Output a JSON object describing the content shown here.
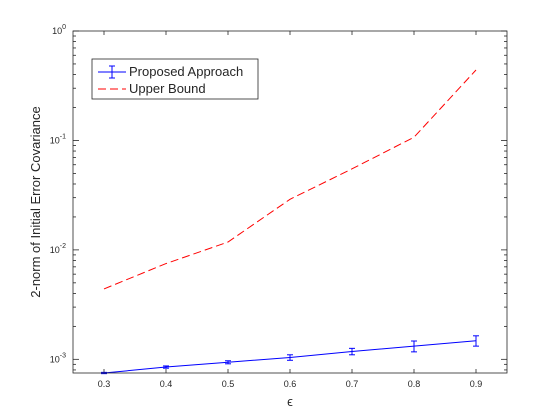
{
  "chart_data": {
    "type": "line",
    "xlabel": "ϵ",
    "ylabel": "2-norm of Initial Error Covariance",
    "xlim": [
      0.25,
      0.95
    ],
    "ylim": [
      0.00075,
      1
    ],
    "yscale": "log",
    "grid": false,
    "legend_position": "top-left",
    "x_ticks": [
      0.3,
      0.4,
      0.5,
      0.6,
      0.7,
      0.8,
      0.9
    ],
    "x_tick_labels": [
      "0.3",
      "0.4",
      "0.5",
      "0.6",
      "0.7",
      "0.8",
      "0.9"
    ],
    "y_ticks": [
      {
        "value": 1,
        "base": "10",
        "exp": "0"
      },
      {
        "value": 0.1,
        "base": "10",
        "exp": "-1"
      },
      {
        "value": 0.01,
        "base": "10",
        "exp": "-2"
      },
      {
        "value": 0.001,
        "base": "10",
        "exp": "-3"
      }
    ],
    "x": [
      0.3,
      0.4,
      0.5,
      0.6,
      0.7,
      0.8,
      0.9
    ],
    "series": [
      {
        "name": "Proposed Approach",
        "style": "solid",
        "color": "#0000ff",
        "values": [
          0.00075,
          0.00085,
          0.00094,
          0.00104,
          0.00118,
          0.00132,
          0.00148
        ],
        "error": [
          1e-05,
          2e-05,
          3e-05,
          6e-05,
          8e-05,
          0.00015,
          0.00016
        ]
      },
      {
        "name": "Upper Bound",
        "style": "dashed",
        "color": "#ff0000",
        "values": [
          0.0044,
          0.0075,
          0.0118,
          0.029,
          0.055,
          0.107,
          0.44
        ]
      }
    ]
  }
}
